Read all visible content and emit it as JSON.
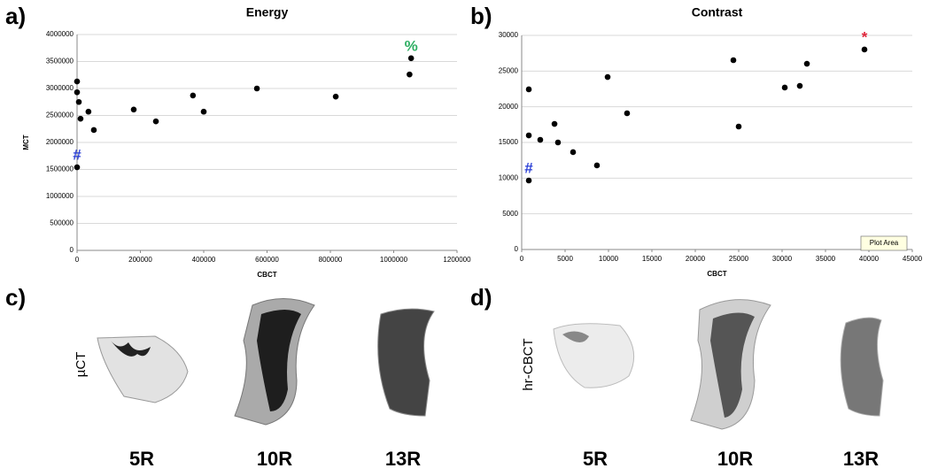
{
  "chart_data": [
    {
      "type": "scatter",
      "panel": "a)",
      "title": "Energy",
      "x_label": "CBCT",
      "y_label": "MCT",
      "color": "#000000",
      "grid": true,
      "x": [
        0,
        0,
        5600,
        11000,
        36000,
        53000,
        179000,
        249000,
        366000,
        400000,
        568000,
        817000,
        0,
        1050000,
        1055000
      ],
      "values": [
        3130000,
        2930000,
        2750000,
        2440000,
        2570000,
        2230000,
        2610000,
        2390000,
        2870000,
        2570000,
        3000000,
        2850000,
        1540000,
        3260000,
        3560000
      ],
      "annotations": [
        {
          "text": "#",
          "index": 12,
          "color": "#2a3fd6"
        },
        {
          "text": "%",
          "index": 14,
          "color": "#2fae63"
        }
      ],
      "xlim": [
        0,
        1200000
      ],
      "xticks": [
        0,
        200000,
        400000,
        600000,
        800000,
        1000000,
        1200000
      ],
      "ylim": [
        0,
        4000000
      ],
      "yticks": [
        0,
        500000,
        1000000,
        1500000,
        2000000,
        2500000,
        3000000,
        3500000,
        4000000
      ]
    },
    {
      "type": "scatter",
      "panel": "b)",
      "title": "Contrast",
      "x_label": "CBCT",
      "color": "#000000",
      "grid": true,
      "x": [
        820,
        820,
        2140,
        3780,
        4180,
        5920,
        8670,
        9900,
        12140,
        25000,
        24390,
        30310,
        32040,
        32860,
        39490,
        820
      ],
      "values": [
        22440,
        15990,
        15370,
        17600,
        15000,
        13640,
        11780,
        24170,
        19090,
        17230,
        26530,
        22690,
        22930,
        26030,
        28020,
        9670
      ],
      "annotations": [
        {
          "text": "#",
          "index": 15,
          "color": "#2a3fd6"
        },
        {
          "text": "*",
          "index": 14,
          "color": "#e0253a"
        }
      ],
      "xlim": [
        0,
        45000
      ],
      "xticks": [
        0,
        5000,
        10000,
        15000,
        20000,
        25000,
        30000,
        35000,
        40000,
        45000
      ],
      "ylim": [
        0,
        30000
      ],
      "yticks": [
        0,
        5000,
        10000,
        15000,
        20000,
        25000,
        30000
      ],
      "tooltip": "Plot Area"
    }
  ],
  "panels": [
    {
      "label": "c)",
      "modality": "µCT",
      "samples": [
        "5R",
        "10R",
        "13R"
      ]
    },
    {
      "label": "d)",
      "modality": "hr-CBCT",
      "samples": [
        "5R",
        "10R",
        "13R"
      ]
    }
  ]
}
